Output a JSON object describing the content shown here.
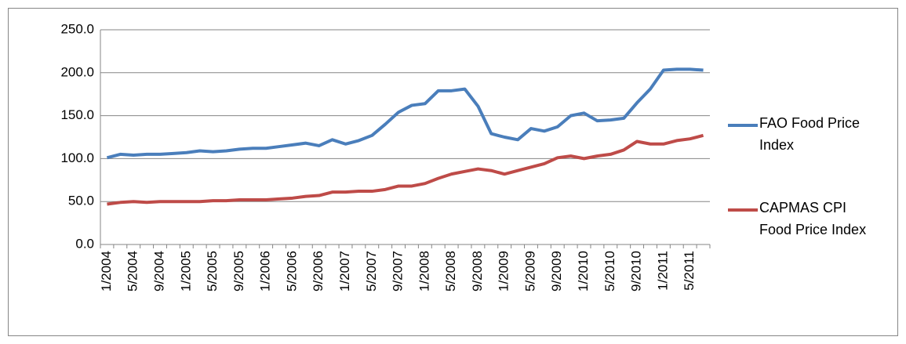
{
  "chart_data": {
    "type": "line",
    "categories": [
      "1/2004",
      null,
      "5/2004",
      null,
      "9/2004",
      null,
      "1/2005",
      null,
      "5/2005",
      null,
      "9/2005",
      null,
      "1/2006",
      null,
      "5/2006",
      null,
      "9/2006",
      null,
      "1/2007",
      null,
      "5/2007",
      null,
      "9/2007",
      null,
      "1/2008",
      null,
      "5/2008",
      null,
      "9/2008",
      null,
      "1/2009",
      null,
      "5/2009",
      null,
      "9/2009",
      null,
      "1/2010",
      null,
      "5/2010",
      null,
      "9/2010",
      null,
      "1/2011",
      null,
      "5/2011",
      null
    ],
    "series": [
      {
        "name": "FAO Food Price Index",
        "color": "#4a7ebb",
        "values": [
          101,
          105,
          104,
          105,
          105,
          106,
          107,
          109,
          108,
          109,
          111,
          112,
          112,
          114,
          116,
          118,
          115,
          122,
          117,
          121,
          127,
          140,
          154,
          162,
          164,
          179,
          179,
          181,
          161,
          129,
          125,
          122,
          135,
          132,
          137,
          150,
          153,
          144,
          145,
          147,
          165,
          181,
          203,
          204,
          204,
          203
        ]
      },
      {
        "name": "CAPMAS CPI Food Price Index",
        "color": "#be4b48",
        "values": [
          47,
          49,
          50,
          49,
          50,
          50,
          50,
          50,
          51,
          51,
          52,
          52,
          52,
          53,
          54,
          56,
          57,
          61,
          61,
          62,
          62,
          64,
          68,
          68,
          71,
          77,
          82,
          85,
          88,
          86,
          82,
          86,
          90,
          94,
          101,
          103,
          100,
          103,
          105,
          110,
          120,
          117,
          117,
          121,
          123,
          127
        ]
      }
    ],
    "ylim": [
      0,
      250
    ],
    "yticks": [
      {
        "value": 0,
        "label": "0.0"
      },
      {
        "value": 50,
        "label": "50.0"
      },
      {
        "value": 100,
        "label": "100.0"
      },
      {
        "value": 150,
        "label": "150.0"
      },
      {
        "value": 200,
        "label": "200.0"
      },
      {
        "value": 250,
        "label": "250.0"
      }
    ],
    "grid": true,
    "legend": "right"
  }
}
